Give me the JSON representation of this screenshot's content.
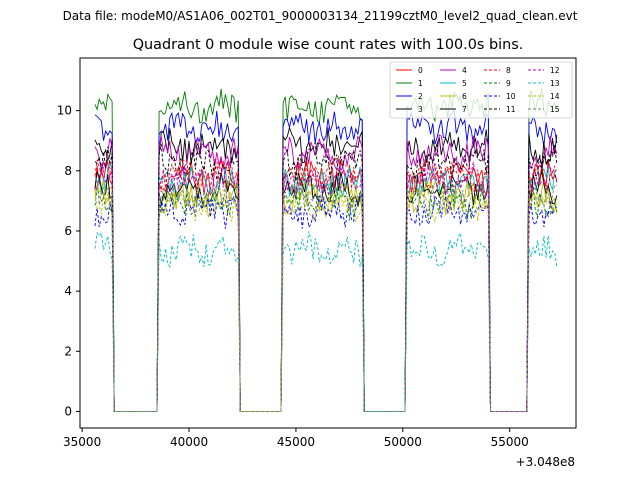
{
  "header": {
    "data_file": "Data file: modeM0/AS1A06_002T01_9000003134_21199cztM0_level2_quad_clean.evt"
  },
  "chart_data": {
    "type": "line",
    "title": "Quadrant 0 module wise count rates with 100.0s bins.",
    "xlabel": "",
    "ylabel": "",
    "x_offset_label": "+3.048e8",
    "xlim": [
      34900,
      58100
    ],
    "ylim": [
      -0.55,
      11.75
    ],
    "xticks": [
      35000,
      40000,
      45000,
      50000,
      55000
    ],
    "yticks": [
      0,
      2,
      4,
      6,
      8,
      10
    ],
    "legend_position": "top-right",
    "legend_columns": 4,
    "bin_width": 100,
    "segments": [
      [
        35600,
        36400
      ],
      [
        38600,
        42300
      ],
      [
        44400,
        48100
      ],
      [
        50200,
        54000
      ],
      [
        55900,
        57200
      ]
    ],
    "gap_level": 0,
    "series": [
      {
        "name": "0",
        "color": "#ff0000",
        "style": "solid",
        "level": 7.8
      },
      {
        "name": "1",
        "color": "#008000",
        "style": "solid",
        "level": 10.2
      },
      {
        "name": "2",
        "color": "#0000ff",
        "style": "solid",
        "level": 9.4
      },
      {
        "name": "3",
        "color": "#000000",
        "style": "solid",
        "level": 8.8
      },
      {
        "name": "4",
        "color": "#bf00bf",
        "style": "solid",
        "level": 8.6
      },
      {
        "name": "5",
        "color": "#00bfbf",
        "style": "solid",
        "level": 7.6
      },
      {
        "name": "6",
        "color": "#bfbf00",
        "style": "solid",
        "level": 7.1
      },
      {
        "name": "7",
        "color": "#000000",
        "style": "solid",
        "level": 7.4
      },
      {
        "name": "8",
        "color": "#ff0000",
        "style": "dashed",
        "level": 7.9
      },
      {
        "name": "9",
        "color": "#008000",
        "style": "dashed",
        "level": 7.0
      },
      {
        "name": "10",
        "color": "#0000ff",
        "style": "dashed",
        "level": 6.7
      },
      {
        "name": "11",
        "color": "#000000",
        "style": "dashed",
        "level": 8.3
      },
      {
        "name": "12",
        "color": "#bf00bf",
        "style": "dashed",
        "level": 7.7
      },
      {
        "name": "13",
        "color": "#00bfbf",
        "style": "dashed",
        "level": 5.4
      },
      {
        "name": "14",
        "color": "#bfbf00",
        "style": "dashed",
        "level": 6.9
      },
      {
        "name": "15",
        "color": "#808080",
        "style": "dashed",
        "level": 7.3
      }
    ]
  }
}
